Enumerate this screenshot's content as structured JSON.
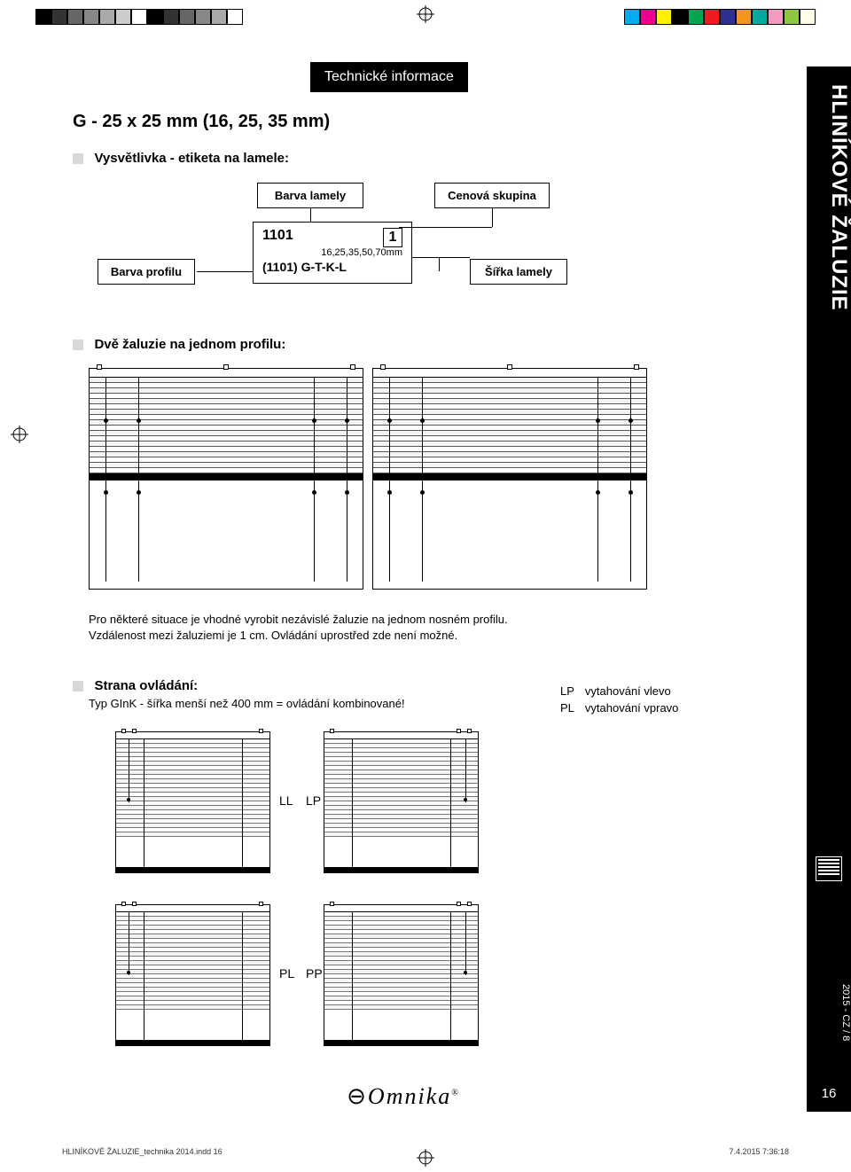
{
  "print_marks": {
    "left_bar_colors": [
      "#000000",
      "#333333",
      "#666666",
      "#888888",
      "#aaaaaa",
      "#cccccc",
      "#ffffff",
      "#000000",
      "#333333",
      "#666666",
      "#888888",
      "#aaaaaa",
      "#ffffff"
    ],
    "right_bar_colors": [
      "#00aeef",
      "#ec008c",
      "#fff200",
      "#000000",
      "#00a651",
      "#ed1c24",
      "#2e3192",
      "#f7941d",
      "#00a99d",
      "#f49ac1",
      "#8dc63f",
      "#fffde7"
    ]
  },
  "header": {
    "title": "Technické informace"
  },
  "section_title": "G - 25 x 25 mm (16, 25, 35 mm)",
  "side_tab": {
    "title": "HLINÍKOVÉ ŽALUZIE",
    "doc_id": "2015 - CZ / 8",
    "page": "16"
  },
  "explain": {
    "heading": "Vysvětlivka - etiketa na lamele:",
    "barva_lamely": "Barva lamely",
    "cenova_skupina": "Cenová skupina",
    "barva_profilu": "Barva profilu",
    "sirka_lamely": "Šířka lamely",
    "ticket": {
      "code": "1101",
      "group": "1",
      "widths": "16,25,35,50,70mm",
      "profile_line": "(1101)  G-T-K-L"
    }
  },
  "dve": {
    "heading": "Dvě žaluzie na jednom profilu:",
    "note1": "Pro některé situace je vhodné vyrobit nezávislé žaluzie na jednom nosném profilu.",
    "note2": "Vzdálenost mezi žaluziemi je 1 cm. Ovládání uprostřed zde není možné."
  },
  "strana": {
    "heading": "Strana ovládání:",
    "note": "Typ GInK - šířka menší než 400 mm = ovládání kombinované!",
    "legend": [
      {
        "code": "LP",
        "desc": "vytahování vlevo"
      },
      {
        "code": "PL",
        "desc": "vytahování vpravo"
      }
    ],
    "pairs": [
      "LL",
      "LP",
      "PL",
      "PP"
    ]
  },
  "logo": "Omnika",
  "footer": {
    "left": "HLINÍKOVÉ ŽALUZIE_technika 2014.indd   16",
    "right": "7.4.2015   7:36:18"
  },
  "diagram_style": {
    "slat_count_large": 18,
    "slat_count_small": 22,
    "line_color": "#000000",
    "fill_alt": "#f3f3f3",
    "background": "#ffffff"
  }
}
